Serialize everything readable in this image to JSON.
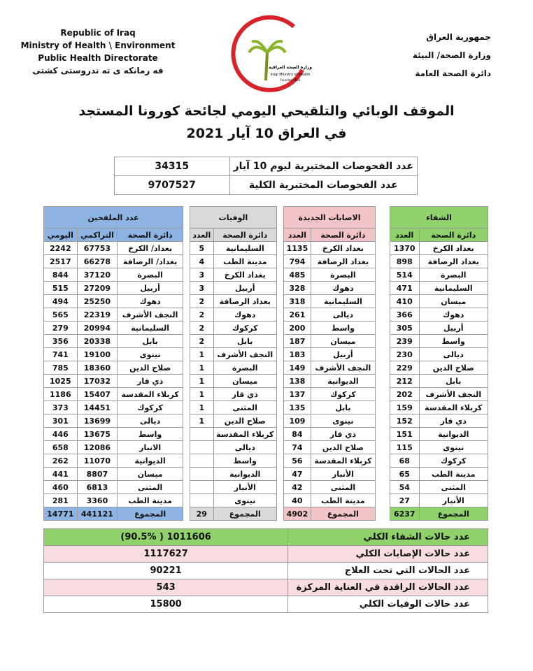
{
  "header": {
    "left": [
      "Republic of Iraq",
      "Ministry of Health \\ Environment",
      "Public Health Directorate",
      "فه رمانكه ى ته ندروستى كشتى"
    ],
    "right": [
      "جمهورية العراق",
      "وزارة الصحة/ البيئة",
      "دائرة الصحة العامة"
    ],
    "logo": [
      "وزارة الصحة العراقية",
      "Iraqi Ministry of Health",
      "Founded 1920"
    ]
  },
  "title": [
    "الموقف الوبائي والتلقيحي اليومي لجائحة كورونا المستجد",
    "في العراق  10  آيار 2021"
  ],
  "tests": [
    [
      "عدد الفحوصات المختبرية  ليوم 10 آيار",
      34315
    ],
    [
      "عدد الفحوصات المختبرية الكلية",
      9707527
    ]
  ],
  "tables": [
    {
      "title": "الشفاء",
      "columns": [
        "دائرة الصحة",
        "العدد"
      ],
      "rows": [
        [
          "بغداد الكرخ",
          1370
        ],
        [
          "بغداد الرصافة",
          898
        ],
        [
          "البصرة",
          514
        ],
        [
          "السليمانية",
          471
        ],
        [
          "ميسان",
          410
        ],
        [
          "دهوك",
          366
        ],
        [
          "أربيل",
          305
        ],
        [
          "واسط",
          239
        ],
        [
          "ديالى",
          230
        ],
        [
          "صلاح الدين",
          229
        ],
        [
          "بابل",
          212
        ],
        [
          "النجف الأشرف",
          202
        ],
        [
          "كربلاء المقدسة",
          159
        ],
        [
          "ذي قار",
          152
        ],
        [
          "الديوانية",
          151
        ],
        [
          "نينوى",
          115
        ],
        [
          "كركوك",
          68
        ],
        [
          "مدينة الطب",
          65
        ],
        [
          "المثنى",
          54
        ],
        [
          "الأنبار",
          27
        ]
      ],
      "total": [
        "المجموع",
        6237
      ]
    },
    {
      "title": "الاصابات الجديدة",
      "columns": [
        "دائرة الصحة",
        "العدد"
      ],
      "rows": [
        [
          "بغداد الكرخ",
          1135
        ],
        [
          "بغداد الرصافة",
          794
        ],
        [
          "البصرة",
          485
        ],
        [
          "دهوك",
          328
        ],
        [
          "السليمانية",
          318
        ],
        [
          "ديالى",
          261
        ],
        [
          "واسط",
          200
        ],
        [
          "ميسان",
          187
        ],
        [
          "أربيل",
          183
        ],
        [
          "النجف الأشرف",
          149
        ],
        [
          "الديوانية",
          138
        ],
        [
          "كركوك",
          137
        ],
        [
          "بابل",
          135
        ],
        [
          "نينوى",
          109
        ],
        [
          "ذي قار",
          84
        ],
        [
          "صلاح الدين",
          74
        ],
        [
          "كربلاء المقدسة",
          56
        ],
        [
          "الأنبار",
          47
        ],
        [
          "المثنى",
          42
        ],
        [
          "مدينة الطب",
          40
        ]
      ],
      "total": [
        "المجموع",
        4902
      ]
    },
    {
      "title": "الوفيات",
      "columns": [
        "دائرة الصحة",
        "العدد"
      ],
      "rows": [
        [
          "السليمانية",
          5
        ],
        [
          "مدينة الطب",
          4
        ],
        [
          "بغداد الكرخ",
          3
        ],
        [
          "أربيل",
          3
        ],
        [
          "بغداد الرصافة",
          2
        ],
        [
          "دهوك",
          2
        ],
        [
          "كركوك",
          2
        ],
        [
          "بابل",
          2
        ],
        [
          "النجف الأشرف",
          1
        ],
        [
          "البصرة",
          1
        ],
        [
          "ميسان",
          1
        ],
        [
          "ذي قار",
          1
        ],
        [
          "المثنى",
          1
        ],
        [
          "صلاح الدين",
          1
        ],
        [
          "كربلاء المقدسة",
          null
        ],
        [
          "ديالى",
          null
        ],
        [
          "واسط",
          null
        ],
        [
          "الديوانية",
          null
        ],
        [
          "الأنبار",
          null
        ],
        [
          "نينوى",
          null
        ]
      ],
      "total": [
        "المجموع",
        29
      ]
    },
    {
      "title": "عدد الملقحين",
      "columns": [
        "دائرة الصحة",
        "التراكمي",
        "اليومي"
      ],
      "rows": [
        [
          "بغداد/ الكرخ",
          67753,
          2242
        ],
        [
          "بغداد/ الرصافة",
          66278,
          2517
        ],
        [
          "البصرة",
          37120,
          844
        ],
        [
          "أربيل",
          27209,
          515
        ],
        [
          "دهوك",
          25250,
          494
        ],
        [
          "النجف الأشرف",
          22319,
          565
        ],
        [
          "السليمانية",
          20994,
          279
        ],
        [
          "بابل",
          20338,
          356
        ],
        [
          "نينوى",
          19100,
          741
        ],
        [
          "صلاح الدين",
          18360,
          785
        ],
        [
          "ذي قار",
          17032,
          1025
        ],
        [
          "كربلاء المقدسة",
          15407,
          1186
        ],
        [
          "كركوك",
          14451,
          373
        ],
        [
          "ديالى",
          13699,
          301
        ],
        [
          "واسط",
          13675,
          446
        ],
        [
          "الانبار",
          12086,
          658
        ],
        [
          "الديوانية",
          11070,
          262
        ],
        [
          "ميسان",
          8807,
          441
        ],
        [
          "المثنى",
          6813,
          460
        ],
        [
          "مدينة الطب",
          3360,
          281
        ]
      ],
      "total": [
        "المجموع",
        441121,
        14771
      ]
    }
  ],
  "summary": [
    [
      "عدد حالات الشفاء الكلي",
      "1011606 ( 90.5%)"
    ],
    [
      "عدد حالات الإصابات الكلي",
      1117627
    ],
    [
      "عدد الحالات التي تحت العلاج",
      90221
    ],
    [
      "عدد الحالات الراقدة في العناية المركزة",
      543
    ],
    [
      "عدد حالات الوفيات الكلي",
      15800
    ]
  ]
}
